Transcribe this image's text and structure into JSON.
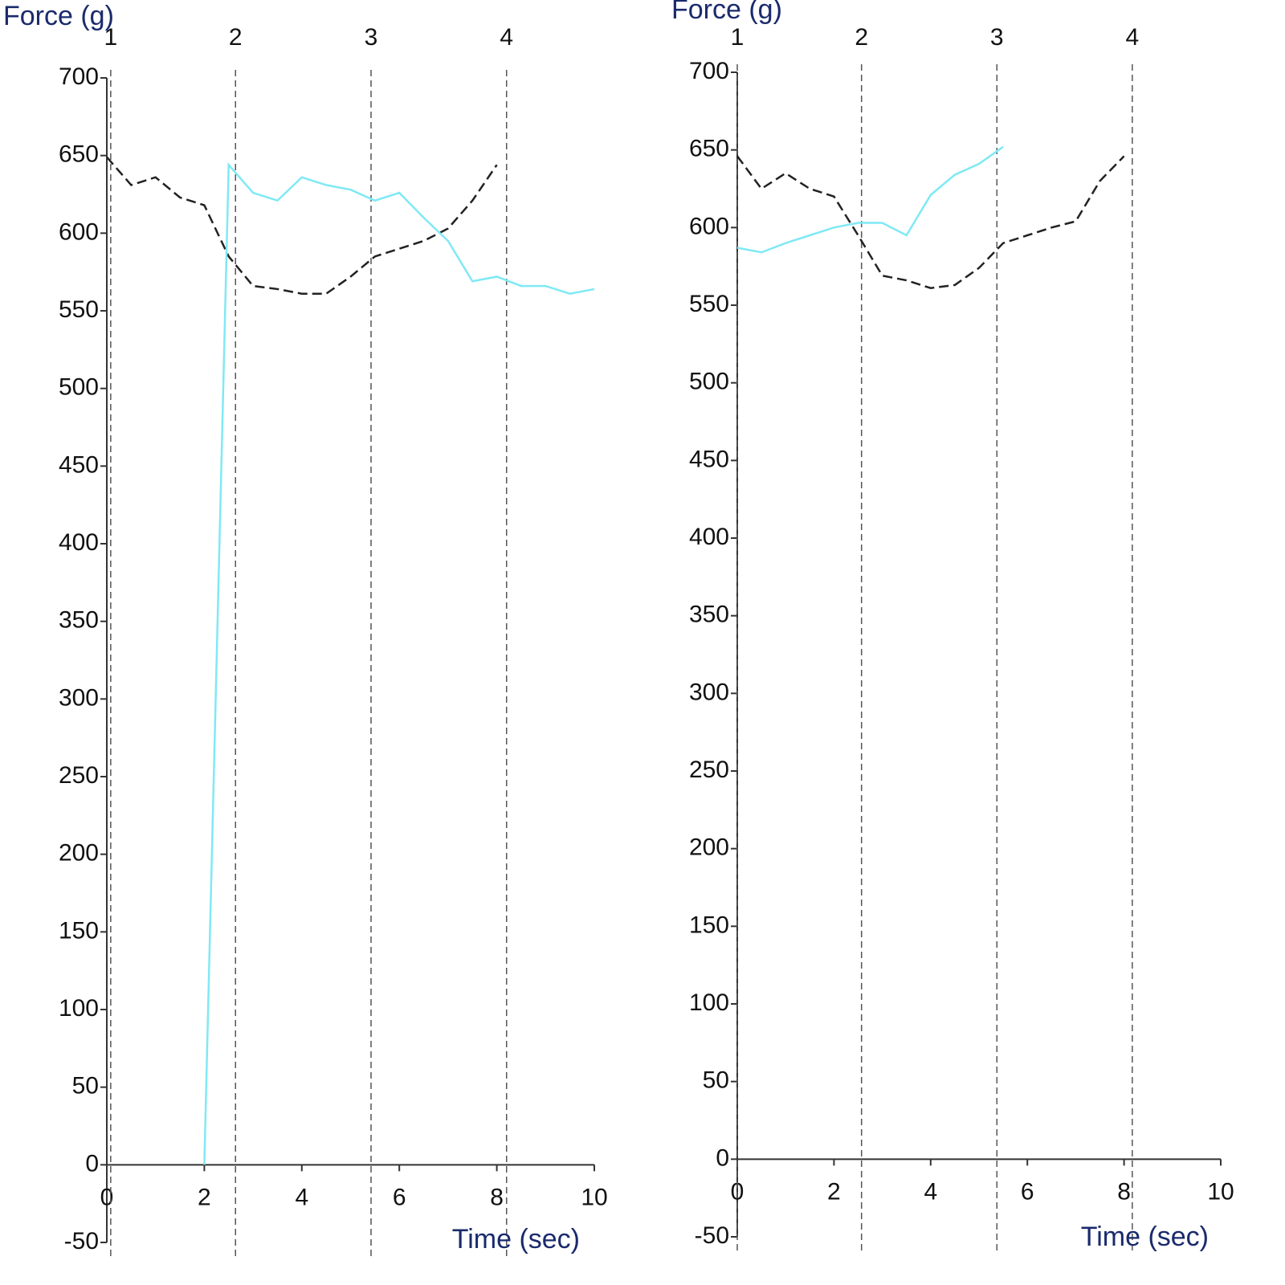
{
  "chart_data": [
    {
      "type": "line",
      "y_label": "Force (g)",
      "x_label": "Time (sec)",
      "xlim": [
        0,
        10
      ],
      "xticks": [
        0,
        2,
        4,
        6,
        8,
        10
      ],
      "ylim": [
        -50,
        700
      ],
      "yticks": [
        -50,
        0,
        50,
        100,
        150,
        200,
        250,
        300,
        350,
        400,
        450,
        500,
        550,
        600,
        650,
        700
      ],
      "x": [
        0,
        0.5,
        1,
        1.5,
        2,
        2.5,
        3,
        3.5,
        4,
        4.5,
        5,
        5.5,
        6,
        6.5,
        7,
        7.5,
        8,
        8.5,
        9,
        9.5,
        10
      ],
      "series": [
        {
          "color": "#222222",
          "line_style": "dashed",
          "values": [
            649,
            631,
            636,
            623,
            618,
            585,
            566,
            564,
            561,
            561,
            572,
            585,
            590,
            595,
            603,
            621,
            644,
            null,
            null,
            null,
            null
          ]
        },
        {
          "color": "#7fe9f5",
          "line_style": "solid",
          "values": [
            null,
            null,
            null,
            null,
            0,
            644,
            626,
            621,
            636,
            631,
            628,
            621,
            626,
            610,
            595,
            569,
            572,
            566,
            566,
            561,
            564
          ]
        }
      ],
      "markers": [
        {
          "x": 0.08,
          "label": "1"
        },
        {
          "x": 2.64,
          "label": "2"
        },
        {
          "x": 5.42,
          "label": "3"
        },
        {
          "x": 8.2,
          "label": "4"
        }
      ]
    },
    {
      "type": "line",
      "y_label": "Force (g)",
      "x_label": "Time (sec)",
      "xlim": [
        0,
        10
      ],
      "xticks": [
        0,
        2,
        4,
        6,
        8,
        10
      ],
      "ylim": [
        -50,
        700
      ],
      "yticks": [
        -50,
        0,
        50,
        100,
        150,
        200,
        250,
        300,
        350,
        400,
        450,
        500,
        550,
        600,
        650,
        700
      ],
      "x": [
        0,
        0.5,
        1,
        1.5,
        2,
        2.5,
        3,
        3.5,
        4,
        4.5,
        5,
        5.5,
        6,
        6.5,
        7,
        7.5,
        8,
        8.5,
        9,
        9.5,
        10
      ],
      "series": [
        {
          "color": "#222222",
          "line_style": "dashed",
          "values": [
            646,
            625,
            635,
            625,
            620,
            595,
            569,
            566,
            561,
            563,
            574,
            590,
            595,
            600,
            604,
            630,
            646,
            null,
            null,
            null,
            null
          ]
        },
        {
          "color": "#7fe9f5",
          "line_style": "solid",
          "values": [
            587,
            584,
            590,
            595,
            600,
            603,
            603,
            595,
            621,
            634,
            641,
            652,
            null,
            null,
            null,
            null,
            null,
            null,
            null,
            null,
            null
          ]
        }
      ],
      "markers": [
        {
          "x": 0,
          "label": "1"
        },
        {
          "x": 2.57,
          "label": "2"
        },
        {
          "x": 5.37,
          "label": "3"
        },
        {
          "x": 8.17,
          "label": "4"
        }
      ]
    }
  ]
}
